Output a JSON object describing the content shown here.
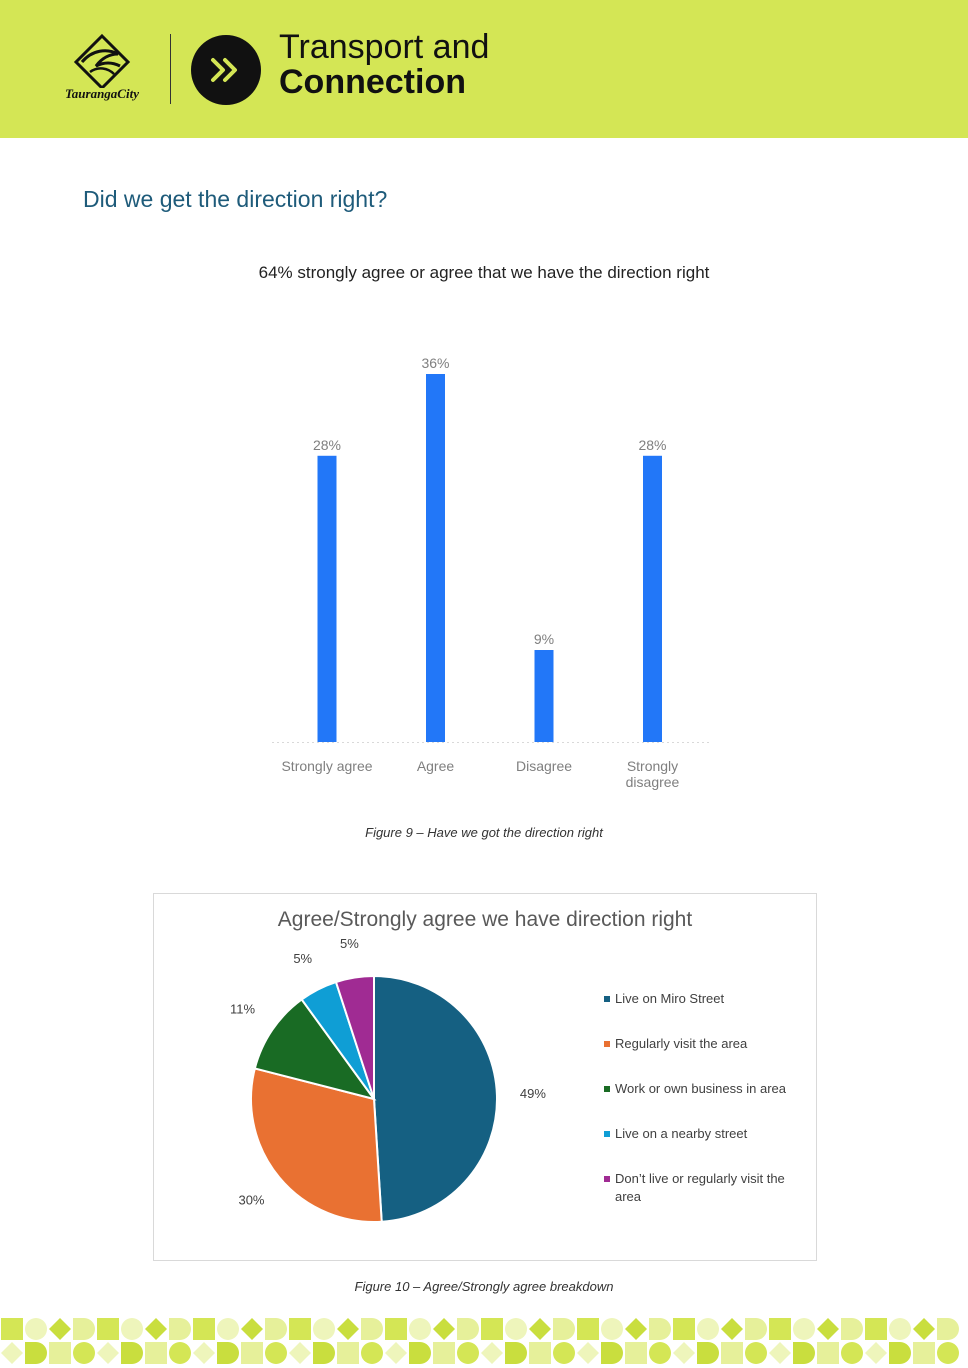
{
  "header": {
    "logo_text": "TaurangaCity",
    "title_line1": "Transport and",
    "title_line2": "Connection",
    "background_color": "#d4e655"
  },
  "section_heading": "Did we get the direction right?",
  "bar_chart": {
    "heading": "64% strongly agree or agree that we have the direction right",
    "caption": "Figure 9 – Have we got the direction right"
  },
  "pie_chart": {
    "caption": "Figure 10 – Agree/Strongly agree breakdown"
  },
  "chart_data": [
    {
      "type": "bar",
      "title": "",
      "categories": [
        "Strongly agree",
        "Agree",
        "Disagree",
        "Strongly disagree"
      ],
      "values": [
        28,
        36,
        9,
        28
      ],
      "data_labels": [
        "28%",
        "36%",
        "9%",
        "28%"
      ],
      "unit": "%",
      "ylim": [
        0,
        36
      ],
      "grid": false,
      "color": "#2277f8"
    },
    {
      "type": "pie",
      "title": "Agree/Strongly agree we have direction right",
      "labels": [
        "Live on Miro Street",
        "Regularly visit the area",
        "Work or own business in area",
        "Live on a nearby street",
        "Don’t live or regularly visit the area"
      ],
      "values": [
        49,
        30,
        11,
        5,
        5
      ],
      "data_labels": [
        "49%",
        "30%",
        "11%",
        "5%",
        "5%"
      ],
      "colors": [
        "#156082",
        "#e97132",
        "#196b24",
        "#0f9ed5",
        "#a02b93"
      ],
      "legend": "right"
    }
  ]
}
